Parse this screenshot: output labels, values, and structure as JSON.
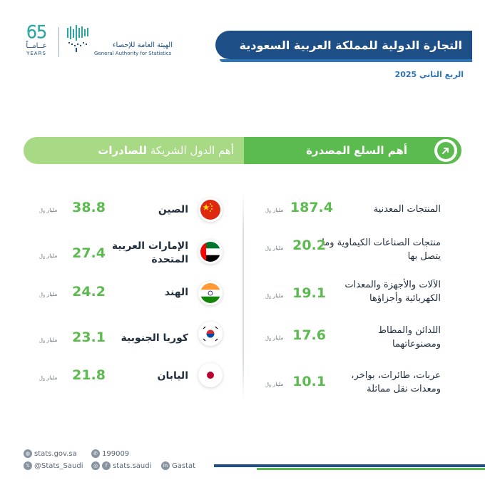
{
  "logo65": {
    "number": "65",
    "arabic": "عــامــاً",
    "english": "YEARS"
  },
  "gastat": {
    "arabic": "الهيئة العامة للإحصاء",
    "english": "General Authority for Statistics"
  },
  "title": "التجارة الدولية للمملكة العربية السعودية",
  "period": "الربع الثاني 2025",
  "headers": {
    "partners_prefix": "أهم الدول الشريكة",
    "partners_bold": "للصادرات",
    "goods": "أهم السلع المصدرة"
  },
  "unit_label": "مليار ﷼",
  "goods": [
    {
      "label": "المنتجات المعدنية",
      "value": "187.4"
    },
    {
      "label": "منتجات الصناعات الكيماوية وما يتصل بها",
      "value": "20.2"
    },
    {
      "label": "الآلات والأجهزة والمعدات الكهربائية وأجزاؤها",
      "value": "19.1"
    },
    {
      "label": "اللدائن والمطاط ومصنوعاتهما",
      "value": "17.6"
    },
    {
      "label": "عربات، طائرات، بواخر، ومعدات نقل مماثلة",
      "value": "10.1"
    }
  ],
  "countries": [
    {
      "name": "الصين",
      "value": "38.8",
      "flag": "china-flag"
    },
    {
      "name": "الإمارات العربية المتحدة",
      "value": "27.4",
      "flag": "uae-flag"
    },
    {
      "name": "الهند",
      "value": "24.2",
      "flag": "india-flag"
    },
    {
      "name": "كوريا الجنوبية",
      "value": "23.1",
      "flag": "south-korea-flag"
    },
    {
      "name": "اليابان",
      "value": "21.8",
      "flag": "japan-flag"
    }
  ],
  "footer": {
    "website": "stats.gov.sa",
    "phone": "199009",
    "twitter": "@Stats_Saudi",
    "social": "stats.saudi",
    "linkedin": "Gastat"
  },
  "colors": {
    "navy": "#1d4f86",
    "green": "#5cbb4f",
    "light_green": "#a8da86"
  }
}
